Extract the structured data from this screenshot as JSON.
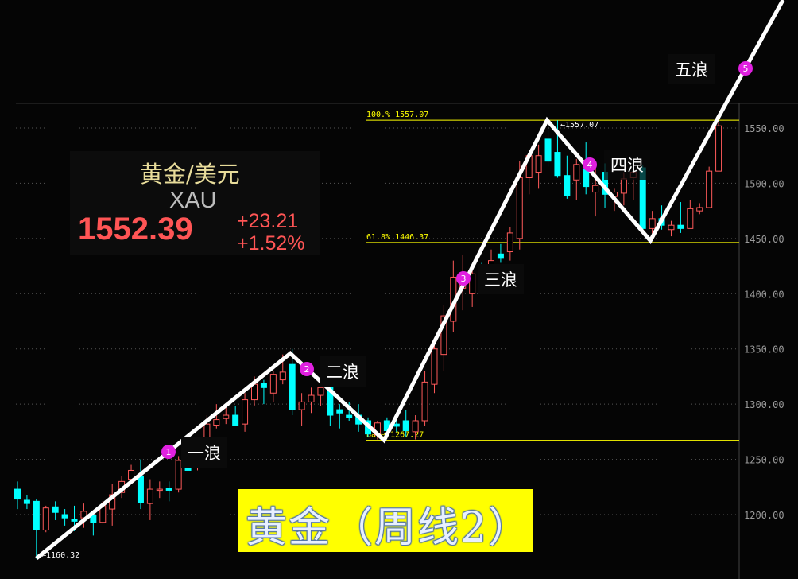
{
  "quote": {
    "name": "黄金/美元",
    "code": "XAU",
    "price": "1552.39",
    "change": "+23.21",
    "change_pct": "+1.52%"
  },
  "banner": "黄金（周线2）",
  "wave_labels": [
    "一浪",
    "二浪",
    "三浪",
    "四浪",
    "五浪"
  ],
  "wave_markers": [
    "1",
    "2",
    "3",
    "4",
    "5"
  ],
  "colors": {
    "up": "#ff5a5a",
    "down": "#00ffff",
    "fib": "#ffff00",
    "wave": "#ffffff",
    "marker": "#e020e0",
    "axis": "#9a9a9a"
  },
  "chart_data": {
    "type": "candlestick",
    "title": "",
    "ylim": [
      1150,
      1666
    ],
    "y_ticks": [
      "1550.00",
      "1500.00",
      "1450.00",
      "1400.00",
      "1350.00",
      "1300.00",
      "1250.00",
      "1200.00"
    ],
    "y_tick_values": [
      1550,
      1500,
      1450,
      1400,
      1350,
      1300,
      1250,
      1200
    ],
    "grid": "dotted horizontal",
    "fib_levels": [
      {
        "label": "100.% 1557.07",
        "value": 1557.07
      },
      {
        "label": "61.8% 1446.37",
        "value": 1446.37
      },
      {
        "label": "Base 1267.27",
        "value": 1267.27
      }
    ],
    "annotations": [
      {
        "text": "1557.07",
        "value": 1557.07
      },
      {
        "text": "1160.32",
        "value": 1160.32
      }
    ],
    "ohlc": [
      [
        1223,
        1230,
        1205,
        1214
      ],
      [
        1213,
        1218,
        1205,
        1210
      ],
      [
        1212,
        1214,
        1160,
        1186
      ],
      [
        1186,
        1208,
        1184,
        1206
      ],
      [
        1207,
        1212,
        1195,
        1202
      ],
      [
        1200,
        1205,
        1190,
        1197
      ],
      [
        1196,
        1208,
        1185,
        1194
      ],
      [
        1197,
        1210,
        1188,
        1203
      ],
      [
        1199,
        1203,
        1181,
        1193
      ],
      [
        1193,
        1212,
        1192,
        1208
      ],
      [
        1205,
        1228,
        1190,
        1218
      ],
      [
        1220,
        1235,
        1215,
        1230
      ],
      [
        1232,
        1245,
        1228,
        1240
      ],
      [
        1235,
        1250,
        1205,
        1211
      ],
      [
        1210,
        1232,
        1195,
        1223
      ],
      [
        1222,
        1230,
        1215,
        1223
      ],
      [
        1224,
        1230,
        1212,
        1222
      ],
      [
        1223,
        1253,
        1220,
        1249
      ],
      [
        1250,
        1256,
        1240,
        1240
      ],
      [
        1243,
        1270,
        1240,
        1262
      ],
      [
        1263,
        1290,
        1260,
        1282
      ],
      [
        1281,
        1300,
        1278,
        1286
      ],
      [
        1287,
        1298,
        1282,
        1290
      ],
      [
        1290,
        1298,
        1282,
        1281
      ],
      [
        1282,
        1310,
        1275,
        1304
      ],
      [
        1304,
        1325,
        1298,
        1318
      ],
      [
        1319,
        1322,
        1300,
        1315
      ],
      [
        1310,
        1330,
        1302,
        1327
      ],
      [
        1322,
        1345,
        1318,
        1329
      ],
      [
        1336,
        1350,
        1290,
        1295
      ],
      [
        1295,
        1310,
        1280,
        1302
      ],
      [
        1302,
        1315,
        1292,
        1308
      ],
      [
        1308,
        1322,
        1298,
        1315
      ],
      [
        1318,
        1325,
        1280,
        1290
      ],
      [
        1295,
        1300,
        1278,
        1292
      ],
      [
        1290,
        1302,
        1285,
        1288
      ],
      [
        1290,
        1300,
        1275,
        1282
      ],
      [
        1285,
        1288,
        1270,
        1273
      ],
      [
        1272,
        1285,
        1268,
        1283
      ],
      [
        1285,
        1288,
        1272,
        1276
      ],
      [
        1282,
        1290,
        1275,
        1280
      ],
      [
        1285,
        1295,
        1270,
        1276
      ],
      [
        1275,
        1290,
        1268,
        1285
      ],
      [
        1285,
        1330,
        1280,
        1320
      ],
      [
        1318,
        1360,
        1310,
        1350
      ],
      [
        1345,
        1390,
        1330,
        1380
      ],
      [
        1375,
        1430,
        1365,
        1415
      ],
      [
        1405,
        1435,
        1385,
        1410
      ],
      [
        1400,
        1425,
        1388,
        1418
      ],
      [
        1425,
        1428,
        1410,
        1418
      ],
      [
        1420,
        1440,
        1412,
        1430
      ],
      [
        1436,
        1445,
        1428,
        1432
      ],
      [
        1438,
        1460,
        1430,
        1455
      ],
      [
        1450,
        1520,
        1440,
        1505
      ],
      [
        1505,
        1530,
        1490,
        1525
      ],
      [
        1510,
        1535,
        1495,
        1525
      ],
      [
        1540,
        1555,
        1515,
        1520
      ],
      [
        1528,
        1557,
        1505,
        1507
      ],
      [
        1507,
        1525,
        1486,
        1489
      ],
      [
        1503,
        1522,
        1485,
        1517
      ],
      [
        1513,
        1537,
        1490,
        1497
      ],
      [
        1492,
        1515,
        1470,
        1498
      ],
      [
        1510,
        1518,
        1478,
        1490
      ],
      [
        1488,
        1495,
        1475,
        1492
      ],
      [
        1491,
        1510,
        1480,
        1504
      ],
      [
        1505,
        1520,
        1485,
        1510
      ],
      [
        1514,
        1516,
        1458,
        1459
      ],
      [
        1459,
        1475,
        1452,
        1468
      ],
      [
        1468,
        1480,
        1458,
        1462
      ],
      [
        1458,
        1466,
        1452,
        1462
      ],
      [
        1462,
        1483,
        1455,
        1459
      ],
      [
        1459,
        1485,
        1459,
        1477
      ],
      [
        1475,
        1482,
        1472,
        1478
      ],
      [
        1478,
        1515,
        1478,
        1511
      ],
      [
        1511,
        1555,
        1511,
        1552
      ]
    ],
    "wave_path": [
      [
        2,
        1160.32
      ],
      [
        28.8,
        1346
      ],
      [
        38.7,
        1267.27
      ],
      [
        55.9,
        1557.07
      ],
      [
        66.8,
        1448
      ],
      [
        80.8,
        1666
      ]
    ]
  }
}
